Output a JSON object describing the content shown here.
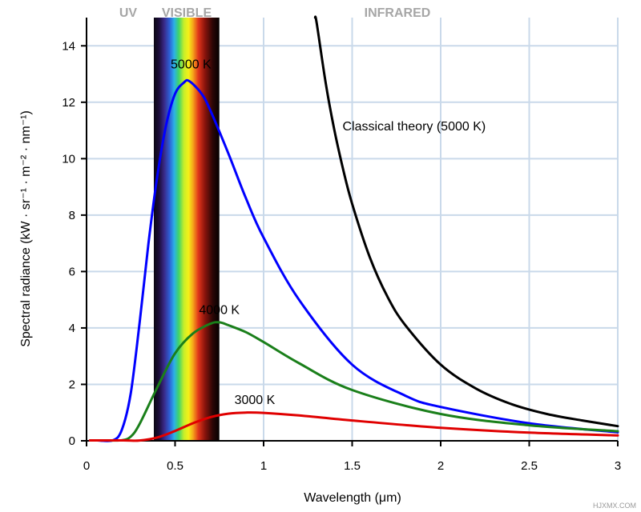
{
  "chart_data": {
    "type": "line",
    "title": "",
    "xlabel": "Wavelength (μm)",
    "ylabel": "Spectral radiance (kW · sr⁻¹ · m⁻² · nm⁻¹)",
    "xlim": [
      0,
      3
    ],
    "ylim": [
      0,
      15
    ],
    "xticks": [
      0,
      0.5,
      1,
      1.5,
      2,
      2.5,
      3
    ],
    "xtick_labels": [
      "0",
      "0.5",
      "1",
      "1.5",
      "2",
      "2.5",
      "3"
    ],
    "yticks": [
      0,
      2,
      4,
      6,
      8,
      10,
      12,
      14
    ],
    "ytick_labels": [
      "0",
      "2",
      "4",
      "6",
      "8",
      "10",
      "12",
      "14"
    ],
    "grid": true,
    "grid_color": "#c9d9ea",
    "regions": [
      {
        "name": "UV",
        "x_range": [
          0,
          0.38
        ]
      },
      {
        "name": "VISIBLE",
        "x_range": [
          0.38,
          0.75
        ]
      },
      {
        "name": "INFRARED",
        "x_range": [
          0.75,
          3
        ]
      }
    ],
    "series": [
      {
        "name": "5000 K",
        "color": "#0000ff",
        "x": [
          0.15,
          0.2,
          0.25,
          0.3,
          0.35,
          0.4,
          0.45,
          0.5,
          0.55,
          0.58,
          0.65,
          0.7,
          0.8,
          0.9,
          1.0,
          1.2,
          1.5,
          1.8,
          2.0,
          2.5,
          3.0
        ],
        "y": [
          0.02,
          0.4,
          1.7,
          4.2,
          7.0,
          9.4,
          11.2,
          12.3,
          12.7,
          12.75,
          12.3,
          11.7,
          10.2,
          8.6,
          7.2,
          5.0,
          2.7,
          1.6,
          1.2,
          0.62,
          0.3
        ]
      },
      {
        "name": "4000 K",
        "color": "#1a7f1a",
        "x": [
          0.2,
          0.25,
          0.3,
          0.4,
          0.5,
          0.6,
          0.7,
          0.75,
          0.8,
          0.9,
          1.0,
          1.2,
          1.5,
          2.0,
          2.5,
          3.0
        ],
        "y": [
          0.02,
          0.15,
          0.6,
          1.9,
          3.1,
          3.8,
          4.15,
          4.2,
          4.1,
          3.85,
          3.5,
          2.75,
          1.8,
          0.95,
          0.55,
          0.34
        ]
      },
      {
        "name": "3000 K",
        "color": "#e00000",
        "x": [
          0.3,
          0.4,
          0.5,
          0.6,
          0.7,
          0.8,
          0.9,
          1.0,
          1.2,
          1.5,
          2.0,
          2.5,
          3.0
        ],
        "y": [
          0.01,
          0.12,
          0.35,
          0.62,
          0.84,
          0.96,
          1.0,
          0.99,
          0.9,
          0.72,
          0.46,
          0.29,
          0.19
        ]
      },
      {
        "name": "Classical theory (5000 K)",
        "color": "#000000",
        "x": [
          1.3,
          1.35,
          1.4,
          1.45,
          1.5,
          1.6,
          1.7,
          1.8,
          2.0,
          2.2,
          2.4,
          2.6,
          2.8,
          3.0
        ],
        "y": [
          14.8,
          12.7,
          11.0,
          9.6,
          8.4,
          6.5,
          5.1,
          4.1,
          2.7,
          1.85,
          1.3,
          0.95,
          0.72,
          0.52
        ]
      }
    ],
    "annotations": [
      {
        "text": "5000 K",
        "x": 0.59,
        "y": 13.2
      },
      {
        "text": "4000 K",
        "x": 0.75,
        "y": 4.5
      },
      {
        "text": "3000 K",
        "x": 0.95,
        "y": 1.3
      },
      {
        "text": "Classical theory (5000 K)",
        "x": 1.85,
        "y": 11.0
      }
    ],
    "watermark": "HJXMX.COM"
  }
}
